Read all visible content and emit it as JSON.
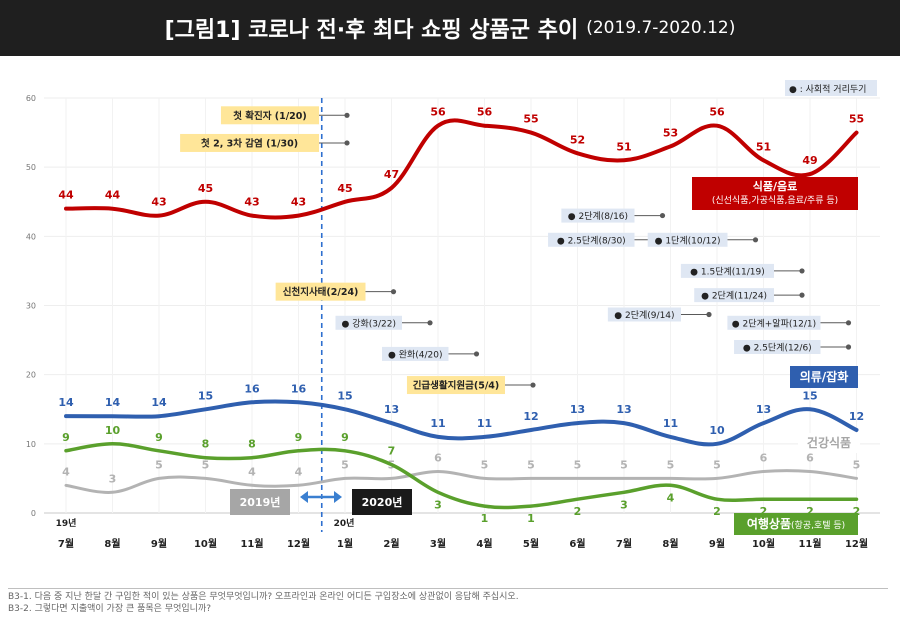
{
  "title": {
    "main": "[그림1] 코로나 전·후 최다 쇼핑 상품군 추이",
    "period": "(2019.7-2020.12)"
  },
  "chart_data": {
    "type": "line",
    "categories": [
      "7월",
      "8월",
      "9월",
      "10월",
      "11월",
      "12월",
      "1월",
      "2월",
      "3월",
      "4월",
      "5월",
      "6월",
      "7월",
      "8월",
      "9월",
      "10월",
      "11월",
      "12월"
    ],
    "year_labels": [
      "19년",
      "20년"
    ],
    "ylim": [
      0,
      60
    ],
    "yticks": [
      0,
      10,
      20,
      30,
      40,
      50,
      60
    ],
    "grid": true,
    "series": [
      {
        "name": "식품/음료",
        "sublabel": "(신선식품,가공식품,음료/주류 등)",
        "color": "#c00000",
        "values": [
          44,
          44,
          43,
          45,
          43,
          43,
          45,
          47,
          56,
          56,
          55,
          52,
          51,
          53,
          56,
          51,
          49,
          55
        ]
      },
      {
        "name": "의류/잡화",
        "sublabel": "",
        "color": "#2f5faf",
        "values": [
          14,
          14,
          14,
          15,
          16,
          16,
          15,
          13,
          11,
          11,
          12,
          13,
          13,
          11,
          10,
          13,
          15,
          12
        ]
      },
      {
        "name": "건강식품",
        "sublabel": "",
        "color": "#b3b3b3",
        "values": [
          4,
          3,
          5,
          5,
          4,
          4,
          5,
          5,
          6,
          5,
          5,
          5,
          5,
          5,
          5,
          6,
          6,
          5
        ]
      },
      {
        "name": "여행상품",
        "sublabel": "(항공,호텔 등)",
        "color": "#5aa02c",
        "values": [
          9,
          10,
          9,
          8,
          8,
          9,
          9,
          7,
          3,
          1,
          1,
          2,
          3,
          4,
          2,
          2,
          2,
          2
        ]
      }
    ],
    "period_labels": [
      "2019년",
      "2020년"
    ],
    "legend_note": "● : 사회적 거리두기",
    "annotations": [
      {
        "text": "첫 확진자 (1/20)",
        "style": "yellow",
        "month_index": 6,
        "y": 57.5
      },
      {
        "text": "첫 2, 3차 감염 (1/30)",
        "style": "yellow",
        "month_index": 6,
        "y": 53.5
      },
      {
        "text": "신천지사태(2/24)",
        "style": "yellow",
        "month_index": 7,
        "y": 32
      },
      {
        "text": "긴급생활지원금(5/4)",
        "style": "yellow",
        "month_index": 10,
        "y": 18.5
      },
      {
        "text": "● 강화(3/22)",
        "style": "blue",
        "month_index": 8,
        "y": 27.5
      },
      {
        "text": "● 완화(4/20)",
        "style": "blue",
        "month_index": 9,
        "y": 23
      },
      {
        "text": "● 2단계(8/16)",
        "style": "blue",
        "month_index": 13,
        "y": 43
      },
      {
        "text": "● 2.5단계(8/30)",
        "style": "blue",
        "month_index": 13,
        "y": 39.5
      },
      {
        "text": "● 1단계(10/12)",
        "style": "blue",
        "month_index": 15,
        "y": 39.5
      },
      {
        "text": "● 1.5단계(11/19)",
        "style": "blue",
        "month_index": 16,
        "y": 35
      },
      {
        "text": "● 2단계(11/24)",
        "style": "blue",
        "month_index": 16,
        "y": 31.5
      },
      {
        "text": "● 2단계(9/14)",
        "style": "blue",
        "month_index": 14,
        "y": 28.7
      },
      {
        "text": "● 2단계+알파(12/1)",
        "style": "blue",
        "month_index": 17,
        "y": 27.5
      },
      {
        "text": "● 2.5단계(12/6)",
        "style": "blue",
        "month_index": 17,
        "y": 24
      }
    ]
  },
  "notes": [
    "B3-1. 다음 중 지난 한달 간 구입한 적이 있는 상품은 무엇무엇입니까? 오프라인과 온라인 어디든 구입장소에 상관없이 응답해 주십시오.",
    "B3-2. 그렇다면 지출액이 가장 큰 품목은 무엇입니까?"
  ]
}
